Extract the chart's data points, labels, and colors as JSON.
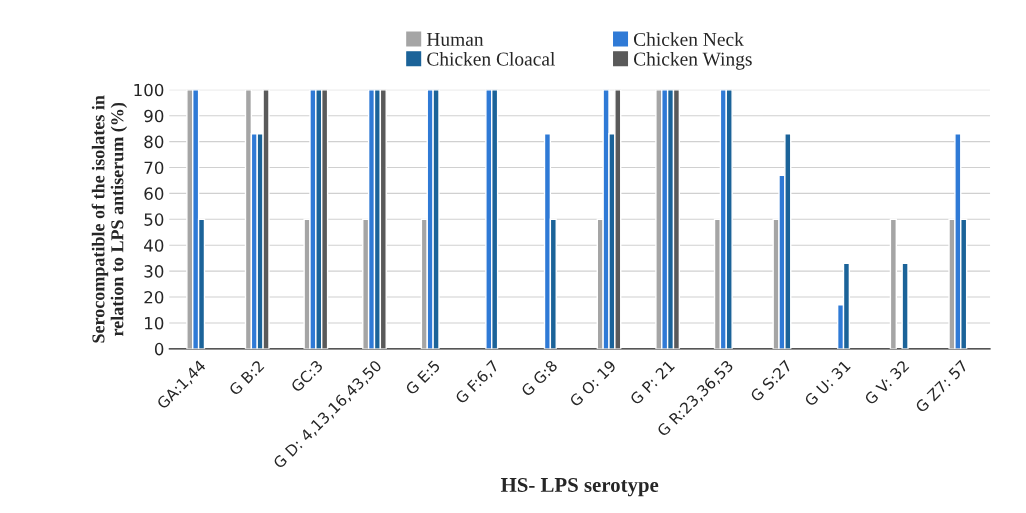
{
  "chart_data": {
    "type": "bar",
    "xlabel": "HS- LPS serotype",
    "ylabel": "Serocompatible of the isolates in\nrelation to LPS antiserum (%)",
    "categories": [
      "GA:1,44",
      "G B:2",
      "GC:3",
      "G D: 4,13,16,43,50",
      "G E:5",
      "G F:6,7",
      "G G:8",
      "G O: 19",
      "G P: 21",
      "G R:23,36,53",
      "G S:27",
      "G U: 31",
      "G V: 32",
      "G Z7: 57"
    ],
    "series": [
      {
        "name": "Human",
        "color": "#a5a5a5",
        "values": [
          100,
          100,
          50,
          50,
          50,
          null,
          null,
          50,
          100,
          50,
          50,
          null,
          50,
          50
        ]
      },
      {
        "name": "Chicken Neck",
        "color": "#2f7ad6",
        "values": [
          100,
          83,
          100,
          100,
          100,
          100,
          83,
          100,
          100,
          100,
          67,
          17,
          null,
          83
        ]
      },
      {
        "name": "Chicken Cloacal",
        "color": "#1b6399",
        "values": [
          50,
          83,
          100,
          100,
          100,
          100,
          50,
          83,
          100,
          100,
          83,
          33,
          33,
          50
        ]
      },
      {
        "name": "Chicken Wings",
        "color": "#5a5a5a",
        "values": [
          null,
          100,
          100,
          100,
          null,
          null,
          null,
          100,
          100,
          null,
          null,
          null,
          null,
          null
        ]
      }
    ],
    "ylim": [
      0,
      100
    ],
    "yticks": [
      0,
      10,
      20,
      30,
      40,
      50,
      60,
      70,
      80,
      90,
      100
    ],
    "grid": "y",
    "legend": "top"
  }
}
